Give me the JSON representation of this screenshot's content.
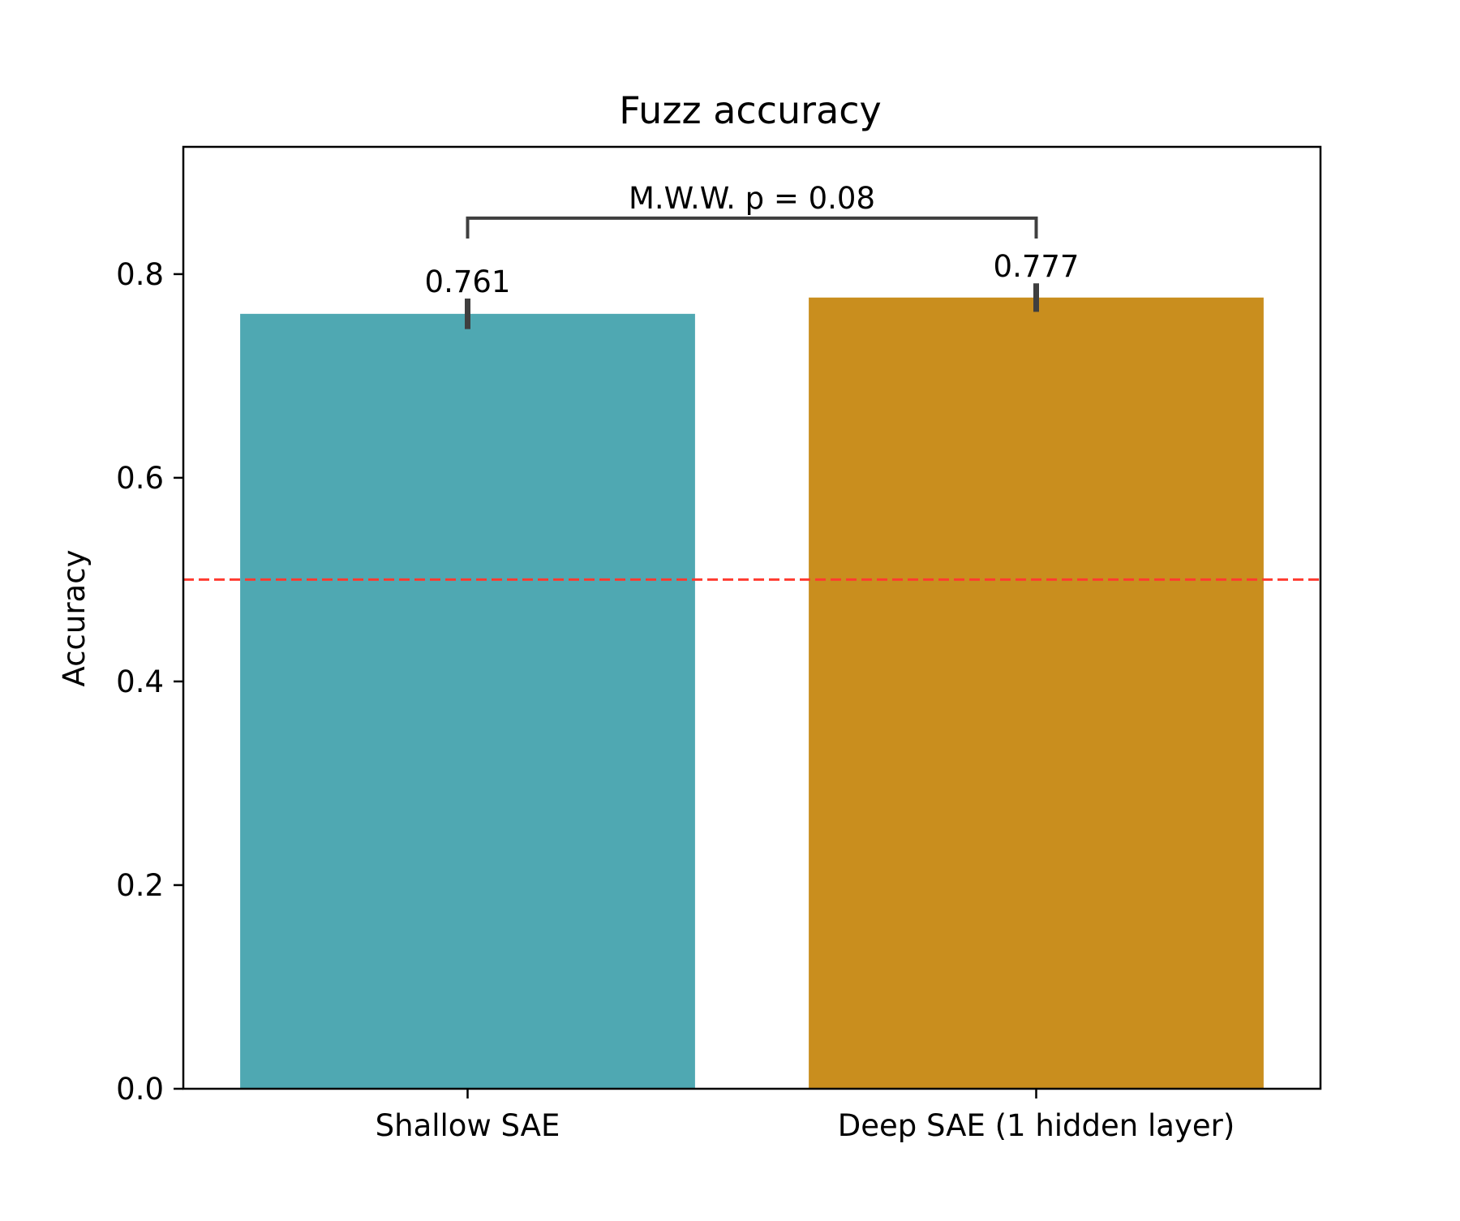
{
  "chart_data": {
    "type": "bar",
    "title": "Fuzz accuracy",
    "xlabel": "",
    "ylabel": "Accuracy",
    "categories": [
      "Shallow SAE",
      "Deep SAE (1 hidden layer)"
    ],
    "values": [
      0.761,
      0.777
    ],
    "value_labels": [
      "0.761",
      "0.777"
    ],
    "error_bars": [
      {
        "low": 0.746,
        "high": 0.776
      },
      {
        "low": 0.763,
        "high": 0.791
      }
    ],
    "bar_colors": [
      "#4fa8b2",
      "#c98e1e"
    ],
    "ylim": [
      0,
      0.925
    ],
    "yticks": [
      0.0,
      0.2,
      0.4,
      0.6,
      0.8
    ],
    "ytick_labels": [
      "0.0",
      "0.2",
      "0.4",
      "0.6",
      "0.8"
    ],
    "reference_line": {
      "value": 0.5,
      "color": "#ff3b30",
      "style": "dashed"
    },
    "significance": {
      "label": "M.W.W. p = 0.08",
      "between": [
        0,
        1
      ],
      "bracket_y": 0.855,
      "bracket_drop": 0.02
    },
    "grid": false,
    "legend": "none"
  }
}
